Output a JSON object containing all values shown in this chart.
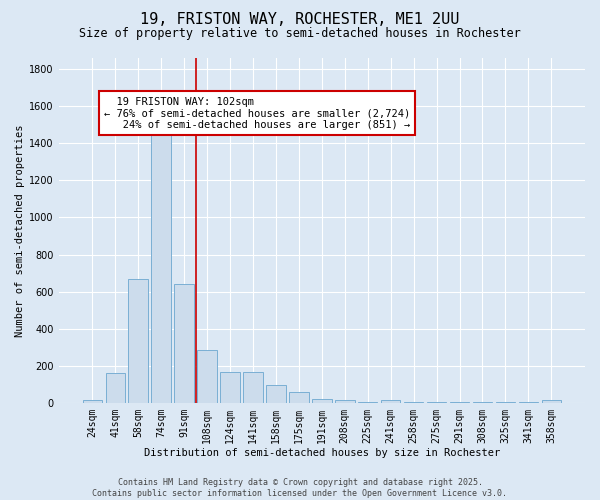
{
  "title": "19, FRISTON WAY, ROCHESTER, ME1 2UU",
  "subtitle": "Size of property relative to semi-detached houses in Rochester",
  "xlabel": "Distribution of semi-detached houses by size in Rochester",
  "ylabel": "Number of semi-detached properties",
  "bar_color": "#ccdcec",
  "bar_edge_color": "#7aafd4",
  "background_color": "#dce8f4",
  "grid_color": "#ffffff",
  "categories": [
    "24sqm",
    "41sqm",
    "58sqm",
    "74sqm",
    "91sqm",
    "108sqm",
    "124sqm",
    "141sqm",
    "158sqm",
    "175sqm",
    "191sqm",
    "208sqm",
    "225sqm",
    "241sqm",
    "258sqm",
    "275sqm",
    "291sqm",
    "308sqm",
    "325sqm",
    "341sqm",
    "358sqm"
  ],
  "values": [
    20,
    160,
    670,
    1460,
    640,
    285,
    170,
    170,
    100,
    60,
    25,
    20,
    5,
    18,
    5,
    5,
    5,
    5,
    5,
    5,
    15
  ],
  "vline_x": 4.5,
  "vline_color": "#cc0000",
  "annotation_line1": "  19 FRISTON WAY: 102sqm",
  "annotation_line2": "← 76% of semi-detached houses are smaller (2,724)",
  "annotation_line3": "   24% of semi-detached houses are larger (851) →",
  "annotation_box_color": "#ffffff",
  "annotation_box_edge": "#cc0000",
  "ylim": [
    0,
    1860
  ],
  "yticks": [
    0,
    200,
    400,
    600,
    800,
    1000,
    1200,
    1400,
    1600,
    1800
  ],
  "footer_line1": "Contains HM Land Registry data © Crown copyright and database right 2025.",
  "footer_line2": "Contains public sector information licensed under the Open Government Licence v3.0.",
  "title_fontsize": 11,
  "subtitle_fontsize": 8.5,
  "axis_label_fontsize": 7.5,
  "tick_fontsize": 7,
  "annotation_fontsize": 7.5,
  "footer_fontsize": 6
}
